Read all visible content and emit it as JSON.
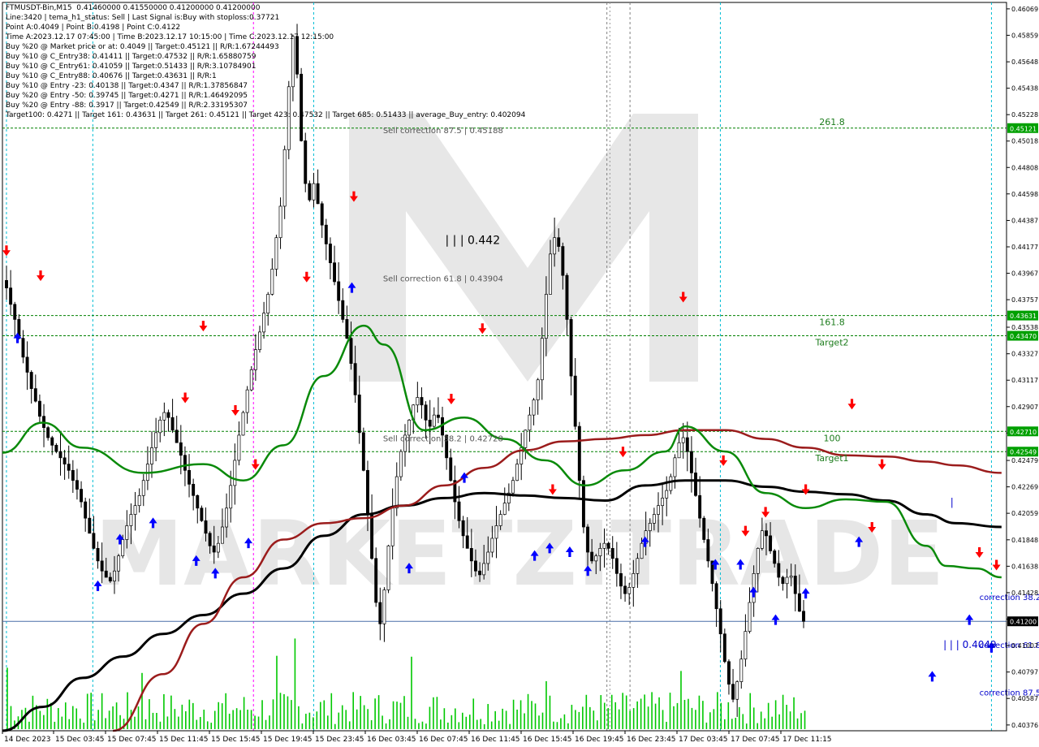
{
  "header": {
    "lines": [
      "FTMUSDT-Bin,M15  0.41460000 0.41550000 0.41200000 0.41200000",
      "Line:3420 | tema_h1_status: Sell | Last Signal is:Buy with stoploss:0.37721",
      "Point A:0.4049 | Point B:0.4198 | Point C:0.4122",
      "Time A:2023.12.17 07:45:00 | Time B:2023.12.17 10:15:00 | Time C:2023.12.17 12:15:00",
      "Buy %20 @ Market price or at: 0.4049 || Target:0.45121 || R/R:1.67244493",
      "Buy %10 @ C_Entry38: 0.41411 || Target:0.47532 || R/R:1.65880759",
      "Buy %10 @ C_Entry61: 0.41059 || Target:0.51433 || R/R:3.10784901",
      "Buy %10 @ C_Entry88: 0.40676 || Target:0.43631 || R/R:1",
      "Buy %10 @ Entry -23: 0.40138 || Target:0.4347 || R/R:1.37856847",
      "Buy %20 @ Entry -50: 0.39745 || Target:0.4271 || R/R:1.46492095",
      "Buy %20 @ Entry -88: 0.3917 || Target:0.42549 || R/R:2.33195307",
      "Target100: 0.4271 || Target 161: 0.43631 || Target 261: 0.45121 || Target 423: 0.47532 || Target 685: 0.51433 || average_Buy_entry: 0.402094"
    ]
  },
  "colors": {
    "green_level": "#008000",
    "cyan_vline": "#00bcd4",
    "magenta_vline": "#ff00ff",
    "grey_vline": "#808080",
    "current_price_line": "#4a6ea9",
    "sma_black": "#000000",
    "ema_green": "#0a8a0a",
    "ema_darkred": "#9b1c1c",
    "volume": "#00c800",
    "arrow_up": "#0000ff",
    "arrow_down": "#ff0000",
    "price_label_green_bg": "#00a000",
    "price_label_black_bg": "#000000"
  },
  "chart_data": {
    "type": "candlestick",
    "symbol": "FTMUSDT-Bin,M15",
    "ylim": [
      0.4033,
      0.4612
    ],
    "x_labels": [
      "14 Dec 2023",
      "15 Dec 03:45",
      "15 Dec 07:45",
      "15 Dec 11:45",
      "15 Dec 15:45",
      "15 Dec 19:45",
      "15 Dec 23:45",
      "16 Dec 03:45",
      "16 Dec 07:45",
      "16 Dec 11:45",
      "16 Dec 15:45",
      "16 Dec 19:45",
      "16 Dec 23:45",
      "17 Dec 03:45",
      "17 Dec 07:45",
      "17 Dec 11:15"
    ],
    "y_ticks": [
      "0.46069",
      "0.45859",
      "0.45648",
      "0.45438",
      "0.45228",
      "0.45018",
      "0.44808",
      "0.44598",
      "0.44387",
      "0.44177",
      "0.43967",
      "0.43757",
      "0.43538",
      "0.43327",
      "0.43117",
      "0.42907",
      "0.42697",
      "0.42479",
      "0.42269",
      "0.42059",
      "0.41848",
      "0.41638",
      "0.41428",
      "0.41218",
      "0.41007",
      "0.40797",
      "0.40587",
      "0.40376"
    ],
    "levels": [
      {
        "price": 0.45121,
        "label": "261.8",
        "tag": "0.45121"
      },
      {
        "price": 0.43631,
        "label": "161.8",
        "tag": "0.43631"
      },
      {
        "price": 0.4347,
        "label": "Target2",
        "tag": "0.43470"
      },
      {
        "price": 0.4271,
        "label": "100",
        "tag": "0.42710"
      },
      {
        "price": 0.42549,
        "label": "Target1",
        "tag": "0.42549"
      }
    ],
    "current_price": {
      "price": 0.412,
      "tag": "0.41200"
    },
    "annotations": [
      {
        "text": "| | | 0.442",
        "size": 14,
        "color": "#000000",
        "x": 0.441,
        "y": 0.442
      },
      {
        "text": "Sell correction 87.5 | 0.45188",
        "size": 10,
        "color": "#555555",
        "x": 0.379,
        "y": 0.4508
      },
      {
        "text": "Sell correction 61.8 | 0.43904",
        "size": 10,
        "color": "#555555",
        "x": 0.379,
        "y": 0.43904
      },
      {
        "text": "Sell correction 38.2 | 0.42728",
        "size": 10,
        "color": "#555555",
        "x": 0.379,
        "y": 0.4263
      },
      {
        "text": "correction 38.2",
        "size": 10,
        "color": "#0000cc",
        "x": 0.973,
        "y": 0.4137
      },
      {
        "text": "correction 61.8",
        "size": 10,
        "color": "#0000cc",
        "x": 0.973,
        "y": 0.4099
      },
      {
        "text": "correction 87.5",
        "size": 10,
        "color": "#0000cc",
        "x": 0.973,
        "y": 0.4061
      },
      {
        "text": "| | | 0.4049",
        "size": 12,
        "color": "#0000cc",
        "x": 0.937,
        "y": 0.4099
      },
      {
        "text": "|",
        "size": 12,
        "color": "#0000cc",
        "x": 0.944,
        "y": 0.4212
      }
    ],
    "watermark": "MARKETZITRADE",
    "close_series": [
      0.4385,
      0.4372,
      0.436,
      0.4345,
      0.433,
      0.4318,
      0.4305,
      0.4295,
      0.4283,
      0.4274,
      0.4266,
      0.426,
      0.4255,
      0.425,
      0.4245,
      0.424,
      0.4232,
      0.4225,
      0.4215,
      0.4202,
      0.419,
      0.4178,
      0.4168,
      0.416,
      0.4155,
      0.4152,
      0.416,
      0.4172,
      0.4185,
      0.4196,
      0.4205,
      0.4212,
      0.422,
      0.4232,
      0.4245,
      0.4258,
      0.427,
      0.428,
      0.4286,
      0.4282,
      0.4272,
      0.4262,
      0.4252,
      0.424,
      0.4229,
      0.422,
      0.421,
      0.42,
      0.419,
      0.418,
      0.4175,
      0.4182,
      0.4195,
      0.421,
      0.4228,
      0.4248,
      0.4268,
      0.4286,
      0.4304,
      0.432,
      0.4336,
      0.435,
      0.4365,
      0.438,
      0.44,
      0.4425,
      0.445,
      0.4495,
      0.4545,
      0.4585,
      0.4555,
      0.4502,
      0.4468,
      0.4455,
      0.4468,
      0.4452,
      0.4435,
      0.442,
      0.4405,
      0.439,
      0.4375,
      0.436,
      0.4345,
      0.4325,
      0.43,
      0.427,
      0.424,
      0.4205,
      0.417,
      0.4135,
      0.4118,
      0.4145,
      0.418,
      0.421,
      0.4235,
      0.4255,
      0.4268,
      0.428,
      0.4292,
      0.4298,
      0.4292,
      0.428,
      0.4275,
      0.4284,
      0.4282,
      0.4268,
      0.425,
      0.4232,
      0.4215,
      0.42,
      0.4188,
      0.4178,
      0.4168,
      0.416,
      0.4157,
      0.4166,
      0.4175,
      0.4186,
      0.4196,
      0.4205,
      0.4214,
      0.4222,
      0.4232,
      0.4245,
      0.4258,
      0.4272,
      0.4284,
      0.4296,
      0.4312,
      0.4345,
      0.438,
      0.4412,
      0.4425,
      0.4418,
      0.4395,
      0.436,
      0.4315,
      0.4275,
      0.4232,
      0.4195,
      0.4175,
      0.4168,
      0.4172,
      0.4178,
      0.4182,
      0.4178,
      0.417,
      0.4158,
      0.4148,
      0.4142,
      0.4147,
      0.4158,
      0.417,
      0.4182,
      0.4192,
      0.4198,
      0.4205,
      0.4212,
      0.4218,
      0.4224,
      0.4235,
      0.425,
      0.4262,
      0.4266,
      0.4255,
      0.4238,
      0.422,
      0.4202,
      0.4185,
      0.4168,
      0.415,
      0.413,
      0.411,
      0.4088,
      0.407,
      0.4058,
      0.4072,
      0.409,
      0.4112,
      0.4135,
      0.4158,
      0.4178,
      0.4192,
      0.4188,
      0.4176,
      0.4166,
      0.4155,
      0.415,
      0.4155,
      0.4156,
      0.4142,
      0.4128,
      0.412
    ],
    "sma_series": [
      0.4036,
      0.4072
    ],
    "ema_green_anchors": [
      [
        0,
        0.4254
      ],
      [
        0.04,
        0.4278
      ],
      [
        0.08,
        0.4258
      ],
      [
        0.14,
        0.4238
      ],
      [
        0.2,
        0.4245
      ],
      [
        0.24,
        0.4232
      ],
      [
        0.28,
        0.426
      ],
      [
        0.32,
        0.4315
      ],
      [
        0.36,
        0.4355
      ],
      [
        0.38,
        0.434
      ],
      [
        0.42,
        0.4272
      ],
      [
        0.46,
        0.4282
      ],
      [
        0.5,
        0.4265
      ],
      [
        0.54,
        0.4248
      ],
      [
        0.58,
        0.4228
      ],
      [
        0.62,
        0.424
      ],
      [
        0.66,
        0.4255
      ],
      [
        0.68,
        0.4275
      ],
      [
        0.72,
        0.4255
      ],
      [
        0.76,
        0.4222
      ],
      [
        0.8,
        0.421
      ],
      [
        0.84,
        0.4217
      ],
      [
        0.88,
        0.4215
      ],
      [
        0.92,
        0.418
      ],
      [
        0.94,
        0.4164
      ],
      [
        0.97,
        0.4162
      ],
      [
        0.995,
        0.4155
      ]
    ],
    "ema_red_anchors": [
      [
        0.11,
        0.4033
      ],
      [
        0.16,
        0.4078
      ],
      [
        0.2,
        0.4118
      ],
      [
        0.24,
        0.4155
      ],
      [
        0.28,
        0.4185
      ],
      [
        0.32,
        0.4198
      ],
      [
        0.36,
        0.4202
      ],
      [
        0.4,
        0.4212
      ],
      [
        0.44,
        0.4228
      ],
      [
        0.48,
        0.4242
      ],
      [
        0.52,
        0.4256
      ],
      [
        0.56,
        0.4263
      ],
      [
        0.6,
        0.4265
      ],
      [
        0.64,
        0.4268
      ],
      [
        0.68,
        0.4272
      ],
      [
        0.72,
        0.4272
      ],
      [
        0.76,
        0.4265
      ],
      [
        0.8,
        0.4258
      ],
      [
        0.84,
        0.4252
      ],
      [
        0.88,
        0.4251
      ],
      [
        0.92,
        0.4247
      ],
      [
        0.95,
        0.4244
      ],
      [
        0.995,
        0.4238
      ]
    ],
    "sma_black_anchors": [
      [
        0,
        0.4033
      ],
      [
        0.04,
        0.4052
      ],
      [
        0.08,
        0.4075
      ],
      [
        0.12,
        0.4092
      ],
      [
        0.16,
        0.411
      ],
      [
        0.2,
        0.4125
      ],
      [
        0.24,
        0.4142
      ],
      [
        0.28,
        0.4162
      ],
      [
        0.32,
        0.4188
      ],
      [
        0.36,
        0.4205
      ],
      [
        0.4,
        0.4212
      ],
      [
        0.44,
        0.4218
      ],
      [
        0.48,
        0.4222
      ],
      [
        0.52,
        0.422
      ],
      [
        0.56,
        0.4218
      ],
      [
        0.6,
        0.4216
      ],
      [
        0.64,
        0.4228
      ],
      [
        0.68,
        0.4232
      ],
      [
        0.72,
        0.4232
      ],
      [
        0.76,
        0.4227
      ],
      [
        0.8,
        0.4223
      ],
      [
        0.84,
        0.4221
      ],
      [
        0.88,
        0.4216
      ],
      [
        0.92,
        0.4205
      ],
      [
        0.95,
        0.4198
      ],
      [
        0.995,
        0.4195
      ]
    ]
  }
}
